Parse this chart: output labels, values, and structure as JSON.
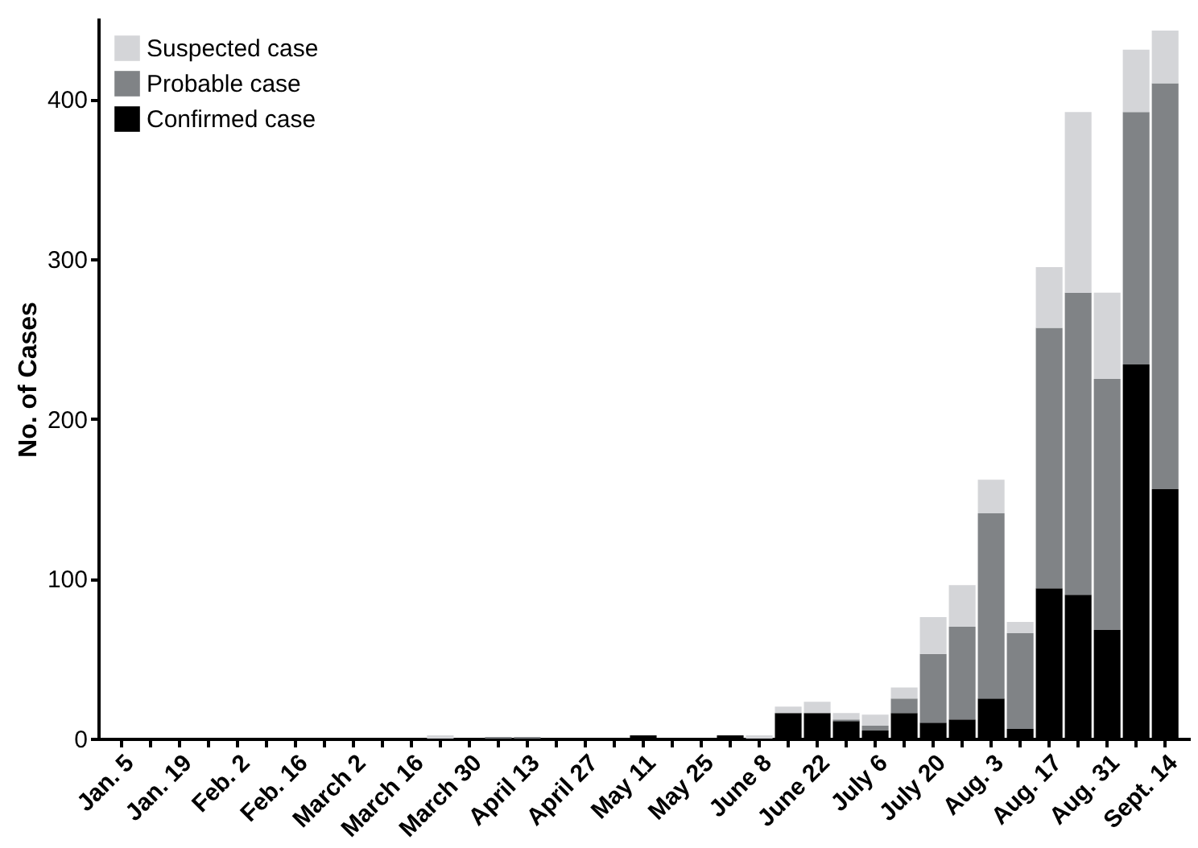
{
  "chart_data": {
    "type": "bar",
    "stacked": true,
    "ylabel": "No. of Cases",
    "categories": [
      "Jan. 5",
      null,
      "Jan. 19",
      null,
      "Feb. 2",
      null,
      "Feb. 16",
      null,
      "March 2",
      null,
      "March 16",
      null,
      "March 30",
      null,
      "April 13",
      null,
      "April 27",
      null,
      "May 11",
      null,
      "May 25",
      null,
      "June 8",
      null,
      "June 22",
      null,
      "July 6",
      null,
      "July 20",
      null,
      "Aug. 3",
      null,
      "Aug. 17",
      null,
      "Aug. 31",
      null,
      "Sept. 14"
    ],
    "series": [
      {
        "name": "Confirmed case",
        "color": "#000000",
        "values": [
          0,
          0,
          0,
          0,
          0,
          0,
          0,
          0,
          0,
          0,
          0,
          0,
          0,
          0,
          0,
          0,
          0,
          0,
          2,
          0,
          0,
          2,
          0,
          16,
          16,
          11,
          5,
          16,
          10,
          12,
          25,
          6,
          94,
          90,
          68,
          234,
          156
        ]
      },
      {
        "name": "Probable case",
        "color": "#808386",
        "values": [
          0,
          0,
          0,
          0,
          0,
          0,
          0,
          0,
          0,
          0,
          0,
          0,
          0,
          1,
          1,
          0,
          0,
          0,
          0,
          0,
          0,
          0,
          0,
          0,
          0,
          1,
          3,
          9,
          43,
          58,
          116,
          60,
          163,
          189,
          157,
          158,
          254
        ]
      },
      {
        "name": "Suspected case",
        "color": "#d4d5d8",
        "values": [
          0,
          0,
          0,
          0,
          0,
          0,
          0,
          0,
          0,
          0,
          0,
          2,
          0,
          0,
          0,
          0,
          0,
          0,
          0,
          0,
          0,
          0,
          2,
          4,
          7,
          4,
          7,
          7,
          23,
          26,
          21,
          7,
          38,
          113,
          54,
          39,
          33
        ]
      }
    ],
    "ylim": [
      0,
      450
    ],
    "yticks": [
      0,
      100,
      200,
      300,
      400
    ],
    "grid": false,
    "legend": "top left"
  }
}
